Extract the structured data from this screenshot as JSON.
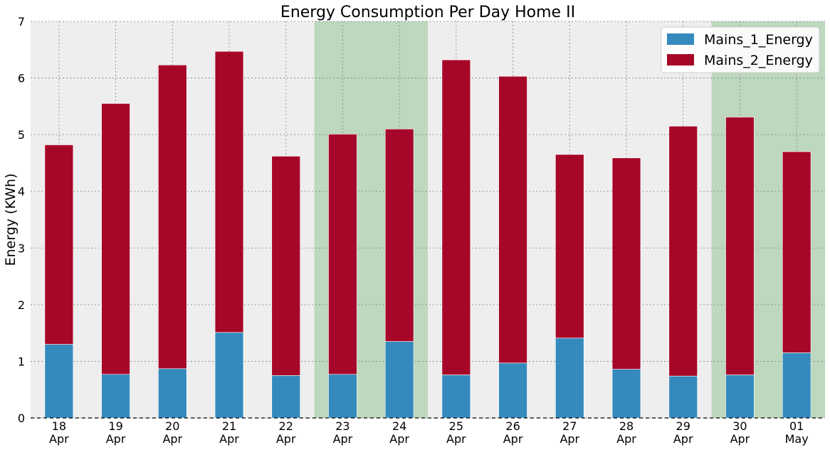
{
  "chart_data": {
    "type": "bar",
    "stacked": true,
    "title": "Energy Consumption Per Day Home II",
    "xlabel": "",
    "ylabel": "Energy (KWh)",
    "ylim": [
      0,
      7
    ],
    "yticks": [
      0,
      1,
      2,
      3,
      4,
      5,
      6,
      7
    ],
    "grid": true,
    "legend_position": "top-right",
    "categories": [
      {
        "day": "18",
        "month": "Apr"
      },
      {
        "day": "19",
        "month": "Apr"
      },
      {
        "day": "20",
        "month": "Apr"
      },
      {
        "day": "21",
        "month": "Apr"
      },
      {
        "day": "22",
        "month": "Apr"
      },
      {
        "day": "23",
        "month": "Apr"
      },
      {
        "day": "24",
        "month": "Apr"
      },
      {
        "day": "25",
        "month": "Apr"
      },
      {
        "day": "26",
        "month": "Apr"
      },
      {
        "day": "27",
        "month": "Apr"
      },
      {
        "day": "28",
        "month": "Apr"
      },
      {
        "day": "29",
        "month": "Apr"
      },
      {
        "day": "30",
        "month": "Apr"
      },
      {
        "day": "01",
        "month": "May"
      }
    ],
    "series": [
      {
        "name": "Mains_1_Energy",
        "color": "#348abd",
        "values": [
          1.3,
          0.77,
          0.87,
          1.51,
          0.75,
          0.77,
          1.35,
          0.76,
          0.97,
          1.41,
          0.86,
          0.74,
          0.76,
          1.15
        ]
      },
      {
        "name": "Mains_2_Energy",
        "color": "#a60628",
        "values": [
          3.52,
          4.78,
          5.36,
          4.96,
          3.87,
          4.24,
          3.75,
          5.56,
          5.06,
          3.24,
          3.73,
          4.41,
          4.55,
          3.55
        ]
      }
    ],
    "highlight_ranges": [
      {
        "start": "23 Apr",
        "end": "24 Apr",
        "color": "#bdd8bd"
      },
      {
        "start": "30 Apr",
        "end": "01 May",
        "color": "#bdd8bd"
      }
    ],
    "colors": {
      "plot_background": "#eeeeee",
      "grid": "#7f7f7f",
      "highlight": "#bdd8bd"
    }
  }
}
